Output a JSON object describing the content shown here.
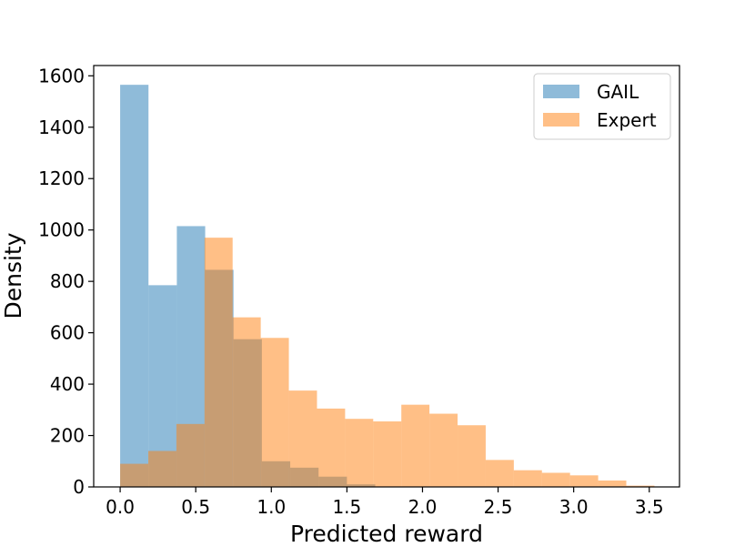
{
  "chart_data": {
    "type": "histogram",
    "title": "",
    "xlabel": "Predicted reward",
    "ylabel": "Density",
    "xlim": [
      -0.175,
      3.7
    ],
    "ylim": [
      0,
      1640
    ],
    "grid": false,
    "legend_placement": "top-right",
    "xticks": [
      0.0,
      0.5,
      1.0,
      1.5,
      2.0,
      2.5,
      3.0,
      3.5
    ],
    "xtick_labels": [
      "0.0",
      "0.5",
      "1.0",
      "1.5",
      "2.0",
      "2.5",
      "3.0",
      "3.5"
    ],
    "yticks": [
      0,
      200,
      400,
      600,
      800,
      1000,
      1200,
      1400,
      1600
    ],
    "ytick_labels": [
      "0",
      "200",
      "400",
      "600",
      "800",
      "1000",
      "1200",
      "1400",
      "1600"
    ],
    "series": [
      {
        "name": "GAIL",
        "color": "#1f77b4",
        "opacity": 0.5,
        "bin_edges": [
          0.0,
          0.1875,
          0.375,
          0.5625,
          0.75,
          0.9375,
          1.125,
          1.3125,
          1.5,
          1.6875
        ],
        "values": [
          1565,
          785,
          1015,
          845,
          575,
          100,
          75,
          40,
          10
        ]
      },
      {
        "name": "Expert",
        "color": "#ff7f0e",
        "opacity": 0.5,
        "bin_edges": [
          0.0,
          0.186,
          0.372,
          0.558,
          0.744,
          0.93,
          1.116,
          1.302,
          1.488,
          1.674,
          1.86,
          2.046,
          2.232,
          2.418,
          2.604,
          2.79,
          2.976,
          3.162,
          3.348,
          3.534
        ],
        "values": [
          90,
          140,
          245,
          970,
          660,
          580,
          375,
          305,
          265,
          255,
          320,
          285,
          240,
          105,
          65,
          55,
          45,
          25,
          5
        ]
      }
    ]
  }
}
